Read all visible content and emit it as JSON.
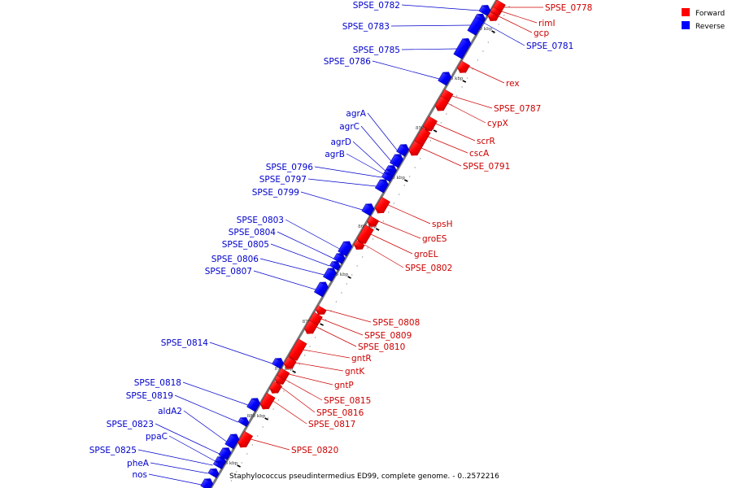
{
  "caption": "Staphylococcus pseudintermedius ED99, complete genome. - 0..2572216",
  "legend": [
    {
      "label": "Forward",
      "color": "#ff0000"
    },
    {
      "label": "Reverse",
      "color": "#0000ff"
    }
  ],
  "colors": {
    "forward_label": "#cc0000",
    "reverse_label": "#0000cc",
    "backbone": "#777777"
  },
  "ticks": [
    "840 kbp",
    "845 kbp",
    "850 kbp",
    "855 kbp",
    "860 kbp",
    "865 kbp",
    "870 kbp",
    "875 kbp",
    "880 kbp",
    "885 kbp"
  ],
  "forward_genes": [
    "SPSE_0778",
    "rimI",
    "gcp",
    "rex",
    "SPSE_0787",
    "cypX",
    "scrR",
    "cscA",
    "SPSE_0791",
    "spsH",
    "groES",
    "groEL",
    "SPSE_0802",
    "SPSE_0808",
    "SPSE_0809",
    "SPSE_0810",
    "gntR",
    "gntK",
    "gntP",
    "SPSE_0815",
    "SPSE_0816",
    "SPSE_0817",
    "SPSE_0820"
  ],
  "reverse_genes": [
    "SPSE_0782",
    "SPSE_0783",
    "SPSE_0781",
    "SPSE_0785",
    "SPSE_0786",
    "agrA",
    "agrC",
    "agrD",
    "agrB",
    "SPSE_0796",
    "SPSE_0797",
    "SPSE_0799",
    "SPSE_0803",
    "SPSE_0804",
    "SPSE_0805",
    "SPSE_0806",
    "SPSE_0807",
    "SPSE_0814",
    "SPSE_0818",
    "SPSE_0819",
    "aldA2",
    "SPSE_0823",
    "ppaC",
    "SPSE_0825",
    "pheA",
    "nos"
  ]
}
